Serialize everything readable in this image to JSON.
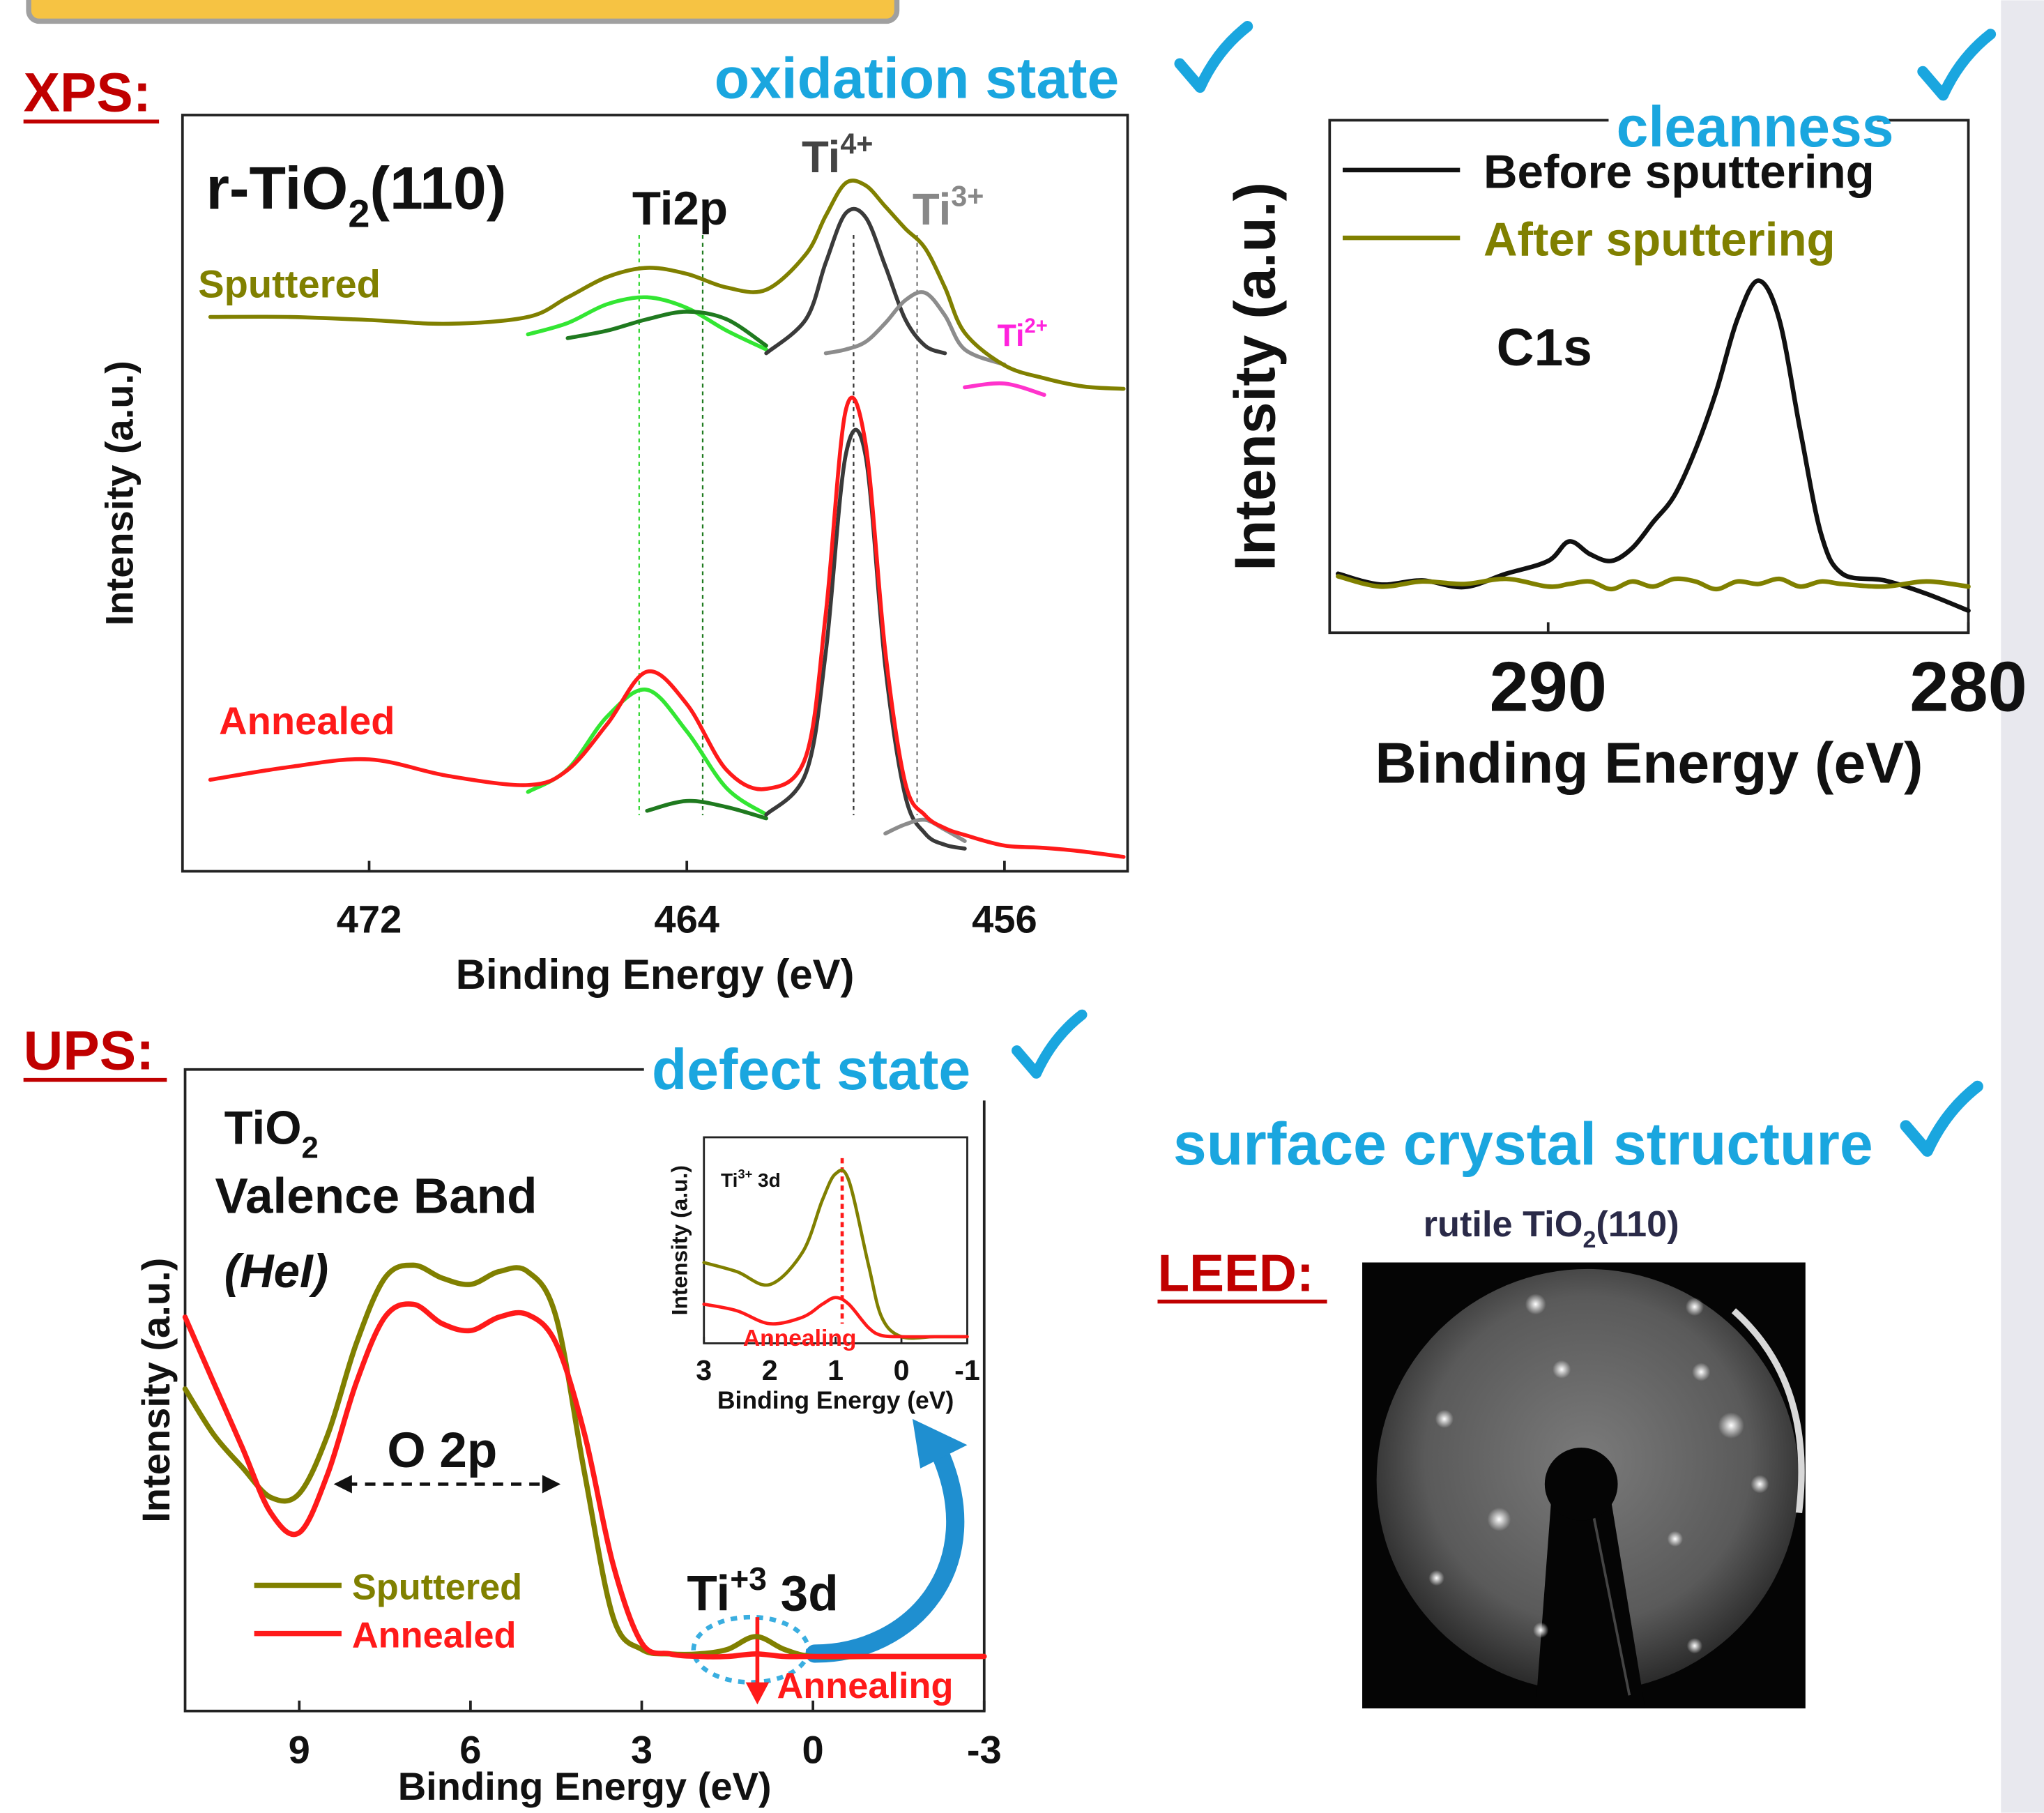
{
  "sections": {
    "xps": "XPS:",
    "ups": "UPS:",
    "leed": "LEED:"
  },
  "leed": {
    "callout": "surface crystal structure",
    "caption": {
      "text": "rutile TiO",
      "sub": "2",
      "after": "(110)"
    }
  },
  "chart_data": [
    {
      "type": "line",
      "callout": "oxidation state",
      "xlabel": "Binding Energy (eV)",
      "ylabel": "Intensity (a.u.)",
      "x": [
        476,
        474,
        472,
        470,
        468,
        467,
        466,
        465,
        464,
        463,
        462,
        461,
        460.5,
        460,
        459.5,
        459,
        458.5,
        458,
        457.5,
        457,
        456,
        455,
        454,
        453
      ],
      "xlim": [
        476.7,
        452.9
      ],
      "ylim": [
        0,
        10
      ],
      "xticks": [
        472,
        464,
        456
      ],
      "reference_lines": [
        {
          "x": 465.2,
          "color": "#33d633"
        },
        {
          "x": 463.6,
          "color": "#1f7a1f"
        },
        {
          "x": 459.8,
          "color": "#333333"
        },
        {
          "x": 458.2,
          "color": "#777777"
        }
      ],
      "series": [
        {
          "color": "#33e633",
          "values": [
            null,
            null,
            null,
            null,
            7.1,
            7.25,
            7.5,
            7.59,
            7.45,
            7.15,
            6.9,
            null,
            null,
            null,
            null,
            null,
            null,
            null,
            null,
            null,
            null,
            null,
            null,
            null
          ]
        },
        {
          "color": "#1f7a1f",
          "values": [
            null,
            null,
            null,
            null,
            null,
            7.05,
            7.15,
            7.3,
            7.4,
            7.3,
            6.95,
            null,
            null,
            null,
            null,
            null,
            null,
            null,
            null,
            null,
            null,
            null,
            null,
            null
          ]
        },
        {
          "color": "#3a3a3a",
          "values": [
            null,
            null,
            null,
            null,
            null,
            null,
            null,
            null,
            null,
            null,
            6.85,
            7.3,
            8.05,
            8.7,
            8.65,
            8.0,
            7.3,
            6.95,
            6.85,
            null,
            null,
            null,
            null,
            null
          ]
        },
        {
          "color": "#8c8c8c",
          "values": [
            null,
            null,
            null,
            null,
            null,
            null,
            null,
            null,
            null,
            null,
            null,
            null,
            6.85,
            6.9,
            7.0,
            7.25,
            7.55,
            7.65,
            7.35,
            6.9,
            6.7,
            null,
            null,
            null
          ]
        },
        {
          "color": "#ff33cc",
          "values": [
            null,
            null,
            null,
            null,
            null,
            null,
            null,
            null,
            null,
            null,
            null,
            null,
            null,
            null,
            null,
            null,
            null,
            null,
            null,
            6.4,
            6.45,
            6.3,
            null,
            null
          ]
        },
        {
          "color": "#33e633",
          "values": [
            null,
            null,
            null,
            null,
            1.05,
            1.35,
            2.05,
            2.4,
            1.85,
            1.1,
            0.75,
            null,
            null,
            null,
            null,
            null,
            null,
            null,
            null,
            null,
            null,
            null,
            null,
            null
          ]
        },
        {
          "color": "#1f7a1f",
          "values": [
            null,
            null,
            null,
            null,
            null,
            null,
            null,
            0.8,
            0.93,
            0.85,
            0.7,
            null,
            null,
            null,
            null,
            null,
            null,
            null,
            null,
            null,
            null,
            null,
            null,
            null
          ]
        },
        {
          "color": "#3a3a3a",
          "values": [
            null,
            null,
            null,
            null,
            null,
            null,
            null,
            null,
            null,
            null,
            0.75,
            1.3,
            2.9,
            5.5,
            5.5,
            2.7,
            1.0,
            0.5,
            0.35,
            0.3,
            null,
            null,
            null,
            null
          ]
        },
        {
          "color": "#8c8c8c",
          "values": [
            null,
            null,
            null,
            null,
            null,
            null,
            null,
            null,
            null,
            null,
            null,
            null,
            null,
            null,
            null,
            0.5,
            0.62,
            0.68,
            0.55,
            0.4,
            null,
            null,
            null,
            null
          ]
        },
        {
          "color": "#808000",
          "values": [
            7.33,
            7.33,
            7.29,
            7.24,
            7.33,
            7.59,
            7.86,
            7.98,
            7.9,
            7.72,
            7.69,
            8.16,
            8.67,
            9.1,
            9.07,
            8.79,
            8.5,
            8.24,
            7.72,
            7.12,
            6.69,
            6.52,
            6.41,
            6.38
          ]
        },
        {
          "color": "#ff1a1a",
          "values": [
            1.21,
            1.38,
            1.48,
            1.26,
            1.14,
            1.34,
            1.95,
            2.64,
            2.21,
            1.34,
            1.09,
            1.52,
            3.41,
            6.09,
            5.66,
            2.9,
            1.17,
            0.74,
            0.57,
            0.48,
            0.34,
            0.31,
            0.26,
            0.19
          ]
        }
      ],
      "annotations": [
        {
          "text": "r-TiO",
          "sub": "2",
          "after": "(110)",
          "color": "#111111"
        },
        {
          "text": "Ti2p",
          "color": "#111111"
        },
        {
          "text": "Ti",
          "sup": "4+",
          "color": "#444444"
        },
        {
          "text": "Ti",
          "sup": "3+",
          "color": "#888888"
        },
        {
          "text": "Ti",
          "sup": "2+",
          "color": "#ff22dd"
        },
        {
          "text": "Sputtered",
          "color": "#808000"
        },
        {
          "text": "Annealed",
          "color": "#ff1a1a"
        }
      ]
    },
    {
      "type": "line",
      "callout": "cleanness",
      "xlabel": "Binding Energy (eV)",
      "ylabel": "Intensity (a.u.)",
      "x": [
        295,
        294,
        293,
        292,
        291,
        290,
        289.5,
        289,
        288.5,
        288,
        287.5,
        287,
        286.5,
        286,
        285.5,
        285,
        284.5,
        284,
        283.5,
        283,
        282,
        281,
        280
      ],
      "xlim": [
        295.2,
        280
      ],
      "ylim": [
        0,
        10
      ],
      "xticks": [
        290,
        280
      ],
      "legend": "upper left",
      "series": [
        {
          "name": "Before sputtering",
          "color": "#111111",
          "values": [
            1.15,
            0.94,
            1.02,
            0.89,
            1.15,
            1.4,
            1.78,
            1.53,
            1.4,
            1.65,
            2.16,
            2.67,
            3.56,
            4.71,
            6.11,
            6.87,
            6.11,
            3.94,
            1.91,
            1.15,
            1.02,
            0.76,
            0.43
          ]
        },
        {
          "name": "After sputtering",
          "color": "#808000",
          "values": [
            1.1,
            0.9,
            1.0,
            0.95,
            1.05,
            0.9,
            0.95,
            1.0,
            0.85,
            1.0,
            0.9,
            1.05,
            1.0,
            0.85,
            1.0,
            0.95,
            1.05,
            0.9,
            1.0,
            0.95,
            0.9,
            1.0,
            0.9
          ]
        }
      ],
      "annotations": [
        {
          "text": "C1s",
          "color": "#111111"
        }
      ]
    },
    {
      "type": "line",
      "callout": "defect state",
      "xlabel": "Binding Energy (eV)",
      "ylabel": "Intensity (a.u.)",
      "x": [
        11,
        10.5,
        10,
        9.5,
        9,
        8.5,
        8,
        7.5,
        7,
        6.5,
        6,
        5.5,
        5,
        4.5,
        4,
        3.5,
        3,
        2.5,
        2,
        1.5,
        1,
        0.5,
        0,
        -1,
        -2,
        -3
      ],
      "xlim": [
        11,
        -3
      ],
      "ylim": [
        0,
        10
      ],
      "xticks": [
        9,
        6,
        3,
        0,
        -3
      ],
      "legend": "lower left",
      "series": [
        {
          "name": "Sputtered",
          "color": "#808000",
          "values": [
            5.02,
            4.31,
            3.8,
            3.33,
            3.39,
            4.31,
            5.73,
            6.75,
            6.95,
            6.75,
            6.65,
            6.85,
            6.85,
            6.14,
            3.7,
            1.46,
            0.96,
            0.89,
            0.89,
            0.96,
            1.16,
            0.96,
            0.85,
            0.85,
            0.85,
            0.85
          ]
        },
        {
          "name": "Annealed",
          "color": "#ff1a1a",
          "values": [
            6.14,
            5.12,
            4.11,
            3.09,
            2.78,
            3.7,
            5.12,
            6.14,
            6.34,
            6.04,
            5.93,
            6.14,
            6.18,
            5.73,
            4.31,
            2.28,
            1.06,
            0.89,
            0.85,
            0.85,
            0.89,
            0.85,
            0.85,
            0.85,
            0.85,
            0.85
          ]
        }
      ],
      "annotations": [
        {
          "text": "TiO",
          "sub": "2",
          "color": "#111111"
        },
        {
          "text": "Valence Band",
          "color": "#111111"
        },
        {
          "text": "(HeI)",
          "italic": true,
          "color": "#111111"
        },
        {
          "text": "O 2p",
          "color": "#111111"
        },
        {
          "text": "Ti",
          "sup": "+3",
          "after": " 3d",
          "color": "#111111"
        },
        {
          "text": "Annealing",
          "color": "#ff1a1a"
        }
      ]
    },
    {
      "type": "line",
      "xlabel": "Binding Energy (eV)",
      "ylabel": "Intensity (a.u.)",
      "x": [
        3,
        2.5,
        2,
        1.5,
        1.2,
        1,
        0.8,
        0.5,
        0.3,
        0,
        -0.5,
        -1
      ],
      "xlim": [
        3,
        -1
      ],
      "ylim": [
        0,
        10
      ],
      "xticks": [
        3,
        2,
        1,
        0,
        -1
      ],
      "reference_lines": [
        {
          "x": 0.9,
          "color": "#ff1a1a"
        }
      ],
      "series": [
        {
          "color": "#808000",
          "values": [
            3.92,
            3.48,
            2.85,
            4.43,
            6.96,
            8.23,
            7.91,
            3.8,
            1.27,
            0.32,
            0.32,
            0.32
          ]
        },
        {
          "color": "#ff1a1a",
          "values": [
            1.9,
            1.58,
            0.95,
            1.27,
            1.9,
            2.22,
            1.9,
            0.76,
            0.38,
            0.32,
            0.32,
            0.32
          ]
        }
      ],
      "annotations": [
        {
          "text": "Ti",
          "sup": "3+",
          "after": " 3d",
          "color": "#111111"
        },
        {
          "text": "Annealing",
          "color": "#ff1a1a"
        }
      ]
    }
  ]
}
